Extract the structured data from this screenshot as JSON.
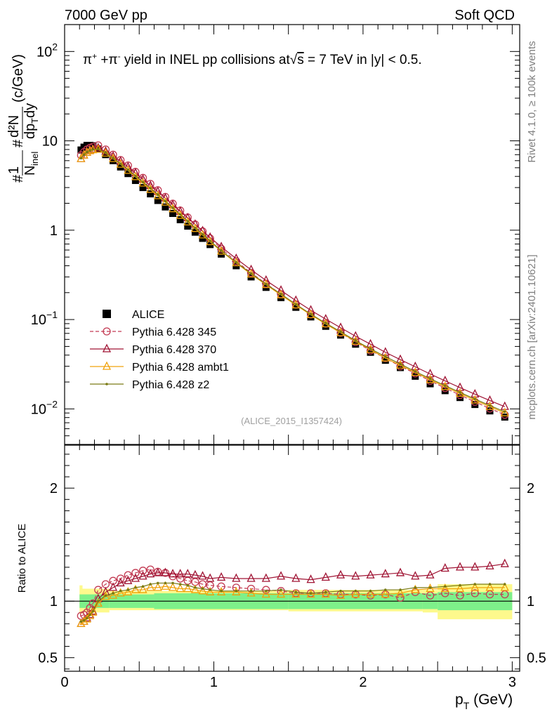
{
  "header": {
    "left": "7000 GeV pp",
    "right": "Soft QCD"
  },
  "side": {
    "rivet": "Rivet 4.1.0, ≥ 100k events",
    "site": "mcplots.cern.ch [arXiv:2401.10621]"
  },
  "analysis_id": "(ALICE_2015_I1357424)",
  "chart_data": [
    {
      "type": "scatter",
      "panel": "main",
      "title": "π⁺ +π⁻ yield in INEL pp collisions at √s = 7 TeV in |y| < 0.5.",
      "title_parts": {
        "pi_plus": "π",
        "plus_sup": "+",
        "plus": " +π",
        "minus_sup": "-",
        "rest": " yield in INEL pp collisions at",
        "sqrt": "√",
        "s": "s",
        "tail": " =  7 TeV in |y| < 0.5."
      },
      "ylabel": "#1/N_inel #d²N/dp_T dy (c/GeV)",
      "ylabel_parts": {
        "hash1": "#",
        "one": "1",
        "n": "N",
        "inel": "inel",
        "hash2": "#",
        "d2n": "d²N",
        "dp": "dp",
        "t": "T",
        "dy": "dy",
        "units": "(c/GeV)"
      },
      "xlim": [
        0,
        3.05
      ],
      "ylim": [
        0.004,
        200
      ],
      "yscale": "log",
      "y_ticks": [
        {
          "value": 100,
          "base": "10",
          "exp": "2"
        },
        {
          "value": 10,
          "base": "10",
          "exp": ""
        },
        {
          "value": 1,
          "base": "1",
          "exp": ""
        },
        {
          "value": 0.1,
          "base": "10",
          "exp": "−1"
        },
        {
          "value": 0.01,
          "base": "10",
          "exp": "−2"
        }
      ],
      "x": [
        0.11,
        0.13,
        0.15,
        0.17,
        0.19,
        0.225,
        0.275,
        0.325,
        0.375,
        0.425,
        0.475,
        0.525,
        0.575,
        0.625,
        0.675,
        0.725,
        0.775,
        0.825,
        0.875,
        0.925,
        0.975,
        1.05,
        1.15,
        1.25,
        1.35,
        1.45,
        1.55,
        1.65,
        1.75,
        1.85,
        1.95,
        2.05,
        2.15,
        2.25,
        2.35,
        2.45,
        2.55,
        2.65,
        2.75,
        2.85,
        2.95
      ],
      "series": [
        {
          "name": "ALICE",
          "marker": "square",
          "color": "#000000",
          "values": [
            7.9,
            8.5,
            8.9,
            8.9,
            8.8,
            8.1,
            7.0,
            6.0,
            5.1,
            4.3,
            3.6,
            3.0,
            2.55,
            2.15,
            1.82,
            1.54,
            1.31,
            1.11,
            0.95,
            0.81,
            0.69,
            0.54,
            0.4,
            0.3,
            0.229,
            0.176,
            0.137,
            0.107,
            0.084,
            0.067,
            0.053,
            0.043,
            0.035,
            0.029,
            0.0232,
            0.0191,
            0.016,
            0.0134,
            0.0112,
            0.0095,
            0.0081
          ]
        },
        {
          "name": "Pythia 6.428 345",
          "marker": "open-circle",
          "line": "dashed",
          "color": "#c33b53",
          "values": [
            6.9,
            7.5,
            8.0,
            8.35,
            8.6,
            8.9,
            8.0,
            7.0,
            6.1,
            5.3,
            4.5,
            3.85,
            3.3,
            2.8,
            2.36,
            1.98,
            1.66,
            1.39,
            1.16,
            0.97,
            0.81,
            0.62,
            0.45,
            0.333,
            0.252,
            0.192,
            0.147,
            0.114,
            0.09,
            0.071,
            0.056,
            0.045,
            0.037,
            0.03,
            0.025,
            0.0206,
            0.0171,
            0.0143,
            0.012,
            0.0101,
            0.0086
          ]
        },
        {
          "name": "Pythia 6.428 370",
          "marker": "open-triangle",
          "line": "solid",
          "color": "#a01434",
          "values": [
            6.3,
            6.9,
            7.4,
            7.8,
            8.0,
            8.3,
            7.6,
            6.7,
            5.9,
            5.1,
            4.35,
            3.7,
            3.15,
            2.7,
            2.28,
            1.92,
            1.62,
            1.37,
            1.16,
            0.98,
            0.83,
            0.65,
            0.48,
            0.36,
            0.274,
            0.212,
            0.163,
            0.127,
            0.101,
            0.081,
            0.065,
            0.053,
            0.043,
            0.0356,
            0.0296,
            0.0246,
            0.0206,
            0.0173,
            0.0146,
            0.0124,
            0.0106
          ]
        },
        {
          "name": "Pythia 6.428 ambt1",
          "marker": "open-triangle",
          "line": "solid",
          "color": "#f0a20c",
          "values": [
            6.3,
            6.9,
            7.4,
            7.7,
            7.9,
            8.0,
            7.25,
            6.3,
            5.45,
            4.65,
            3.95,
            3.35,
            2.85,
            2.42,
            2.05,
            1.73,
            1.46,
            1.23,
            1.04,
            0.88,
            0.74,
            0.58,
            0.43,
            0.321,
            0.245,
            0.188,
            0.145,
            0.113,
            0.089,
            0.071,
            0.057,
            0.046,
            0.037,
            0.0308,
            0.0255,
            0.0212,
            0.0177,
            0.0149,
            0.0125,
            0.0106,
            0.009
          ]
        },
        {
          "name": "Pythia 6.428 z2",
          "marker": "dot",
          "line": "solid",
          "color": "#7a7a14",
          "values": [
            6.4,
            7.0,
            7.5,
            7.8,
            8.0,
            8.1,
            7.35,
            6.4,
            5.55,
            4.75,
            4.05,
            3.45,
            2.95,
            2.5,
            2.11,
            1.78,
            1.5,
            1.26,
            1.06,
            0.9,
            0.76,
            0.59,
            0.437,
            0.327,
            0.249,
            0.193,
            0.148,
            0.115,
            0.091,
            0.073,
            0.058,
            0.047,
            0.0385,
            0.0318,
            0.0262,
            0.0218,
            0.0182,
            0.0153,
            0.0129,
            0.0109,
            0.0093
          ]
        }
      ]
    },
    {
      "type": "line",
      "panel": "ratio",
      "ylabel": "Ratio to ALICE",
      "ylim": [
        0.38,
        2.38
      ],
      "y_ticks": [
        {
          "value": 0.5,
          "label": "0.5"
        },
        {
          "value": 1,
          "label": "1"
        },
        {
          "value": 2,
          "label": "2"
        }
      ],
      "x_ticks": [
        {
          "value": 0,
          "label": "0"
        },
        {
          "value": 1,
          "label": "1"
        },
        {
          "value": 2,
          "label": "2"
        },
        {
          "value": 3,
          "label": "3"
        }
      ],
      "xlabel": "p_T (GeV)",
      "xlabel_parts": {
        "p": "p",
        "t": "T",
        "units": " (GeV)"
      },
      "reference_line": 1,
      "bands": {
        "inner_color": "#7ef08a",
        "outer_color": "#fdf98c",
        "segments": [
          {
            "x0": 0.1,
            "x1": 0.12,
            "inner": [
              0.94,
              1.06
            ],
            "outer": [
              0.89,
              1.14
            ]
          },
          {
            "x0": 0.12,
            "x1": 0.3,
            "inner": [
              0.94,
              1.06
            ],
            "outer": [
              0.9,
              1.11
            ]
          },
          {
            "x0": 0.3,
            "x1": 0.6,
            "inner": [
              0.94,
              1.06
            ],
            "outer": [
              0.92,
              1.09
            ]
          },
          {
            "x0": 0.6,
            "x1": 1.5,
            "inner": [
              0.93,
              1.07
            ],
            "outer": [
              0.92,
              1.09
            ]
          },
          {
            "x0": 1.5,
            "x1": 2.4,
            "inner": [
              0.93,
              1.07
            ],
            "outer": [
              0.91,
              1.1
            ]
          },
          {
            "x0": 2.4,
            "x1": 2.5,
            "inner": [
              0.93,
              1.07
            ],
            "outer": [
              0.9,
              1.1
            ]
          },
          {
            "x0": 2.5,
            "x1": 3.0,
            "inner": [
              0.92,
              1.08
            ],
            "outer": [
              0.84,
              1.15
            ]
          }
        ]
      },
      "series": [
        {
          "name": "Pythia 6.428 345",
          "color": "#c33b53",
          "values": [
            0.87,
            0.88,
            0.9,
            0.94,
            0.98,
            1.1,
            1.15,
            1.18,
            1.2,
            1.23,
            1.25,
            1.27,
            1.28,
            1.26,
            1.25,
            1.22,
            1.2,
            1.18,
            1.17,
            1.15,
            1.14,
            1.13,
            1.12,
            1.11,
            1.1,
            1.09,
            1.07,
            1.07,
            1.07,
            1.06,
            1.06,
            1.05,
            1.06,
            1.03,
            1.08,
            1.05,
            1.07,
            1.05,
            1.07,
            1.06,
            1.06
          ]
        },
        {
          "name": "Pythia 6.428 370",
          "color": "#a01434",
          "values": [
            0.8,
            0.82,
            0.85,
            0.88,
            0.91,
            1.02,
            1.08,
            1.12,
            1.16,
            1.18,
            1.2,
            1.22,
            1.24,
            1.25,
            1.25,
            1.24,
            1.24,
            1.24,
            1.23,
            1.22,
            1.2,
            1.21,
            1.2,
            1.2,
            1.2,
            1.22,
            1.2,
            1.19,
            1.21,
            1.23,
            1.22,
            1.23,
            1.24,
            1.25,
            1.22,
            1.23,
            1.29,
            1.3,
            1.3,
            1.31,
            1.33
          ]
        },
        {
          "name": "Pythia 6.428 ambt1",
          "color": "#f0a20c",
          "values": [
            0.8,
            0.82,
            0.84,
            0.87,
            0.9,
            0.98,
            1.04,
            1.05,
            1.07,
            1.08,
            1.1,
            1.1,
            1.12,
            1.12,
            1.13,
            1.12,
            1.11,
            1.11,
            1.1,
            1.09,
            1.08,
            1.08,
            1.08,
            1.07,
            1.06,
            1.06,
            1.06,
            1.06,
            1.06,
            1.05,
            1.06,
            1.06,
            1.06,
            1.07,
            1.1,
            1.11,
            1.11,
            1.11,
            1.12,
            1.12,
            1.12
          ]
        },
        {
          "name": "Pythia 6.428 z2",
          "color": "#7a7a14",
          "values": [
            0.82,
            0.83,
            0.85,
            0.88,
            0.91,
            1.0,
            1.05,
            1.07,
            1.09,
            1.1,
            1.12,
            1.13,
            1.15,
            1.16,
            1.16,
            1.16,
            1.15,
            1.14,
            1.12,
            1.11,
            1.1,
            1.09,
            1.09,
            1.09,
            1.09,
            1.1,
            1.08,
            1.07,
            1.08,
            1.09,
            1.09,
            1.09,
            1.1,
            1.1,
            1.12,
            1.12,
            1.13,
            1.14,
            1.15,
            1.15,
            1.15
          ]
        }
      ]
    }
  ]
}
